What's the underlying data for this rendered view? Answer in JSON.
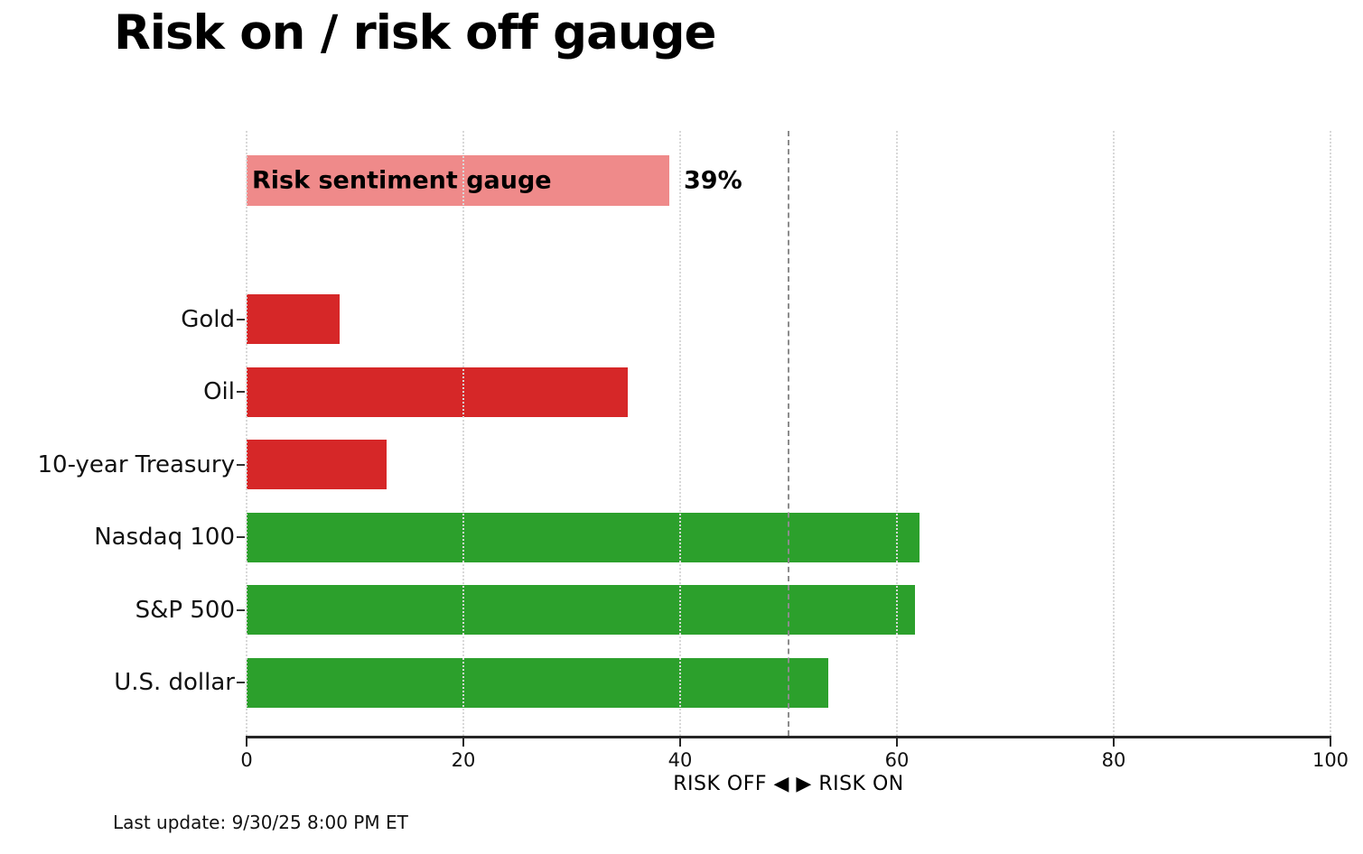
{
  "title": "Risk on / risk off gauge",
  "footer": {
    "last_update": "Last update: 9/30/25 8:00 PM ET"
  },
  "colors": {
    "risk_off_red": "#d62728",
    "risk_on_green": "#2ca02c",
    "gauge_pink": "#ef8a8a",
    "gridline": "#d8d8d8",
    "threshold_line": "#8c8c8c",
    "axis": "#262626"
  },
  "chart_data": {
    "type": "bar",
    "orientation": "horizontal",
    "title": "Risk on / risk off gauge",
    "xlabel": "RISK OFF ◀ ▶ RISK ON",
    "ylabel": "",
    "xlim": [
      0,
      100
    ],
    "xticks": [
      0,
      20,
      40,
      60,
      80,
      100
    ],
    "grid": "vertical dotted, drawn above bars",
    "threshold": 50,
    "gauge": {
      "label": "Risk sentiment gauge",
      "value": 39,
      "value_label": "39%",
      "color": "#ef8a8a"
    },
    "categories": [
      "Gold",
      "Oil",
      "10-year Treasury",
      "Nasdaq 100",
      "S&P 500",
      "U.S. dollar"
    ],
    "values": [
      8.6,
      35.2,
      12.9,
      62.1,
      61.7,
      53.7
    ],
    "bar_colors": [
      "#d62728",
      "#d62728",
      "#d62728",
      "#2ca02c",
      "#2ca02c",
      "#2ca02c"
    ],
    "bar_sentiments": [
      "risk-off",
      "risk-off",
      "risk-off",
      "risk-on",
      "risk-on",
      "risk-on"
    ]
  }
}
